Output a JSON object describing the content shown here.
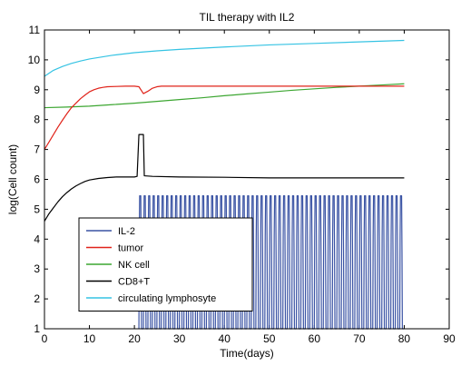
{
  "chart_data": {
    "type": "line",
    "title": "TIL therapy with IL2",
    "xlabel": "Time(days)",
    "ylabel": "log(Cell count)",
    "xlim": [
      0,
      90
    ],
    "ylim": [
      1,
      11
    ],
    "xticks": [
      0,
      10,
      20,
      30,
      40,
      50,
      60,
      70,
      80,
      90
    ],
    "yticks": [
      1,
      2,
      3,
      4,
      5,
      6,
      7,
      8,
      9,
      10,
      11
    ],
    "grid": false,
    "legend_position": "lower-left",
    "series": [
      {
        "name": "IL-2",
        "color": "#3a53a4",
        "pattern": "oscillating",
        "start": 21,
        "end": 80,
        "period": 1,
        "min": 1,
        "max": 5.45,
        "points": []
      },
      {
        "name": "tumor",
        "color": "#e0231a",
        "points": [
          [
            0,
            7.0
          ],
          [
            1,
            7.25
          ],
          [
            2,
            7.5
          ],
          [
            3,
            7.75
          ],
          [
            4,
            7.98
          ],
          [
            5,
            8.2
          ],
          [
            6,
            8.4
          ],
          [
            7,
            8.55
          ],
          [
            8,
            8.7
          ],
          [
            9,
            8.82
          ],
          [
            10,
            8.93
          ],
          [
            11,
            9.0
          ],
          [
            12,
            9.05
          ],
          [
            13,
            9.08
          ],
          [
            14,
            9.1
          ],
          [
            16,
            9.11
          ],
          [
            18,
            9.12
          ],
          [
            20,
            9.12
          ],
          [
            21,
            9.1
          ],
          [
            22,
            8.87
          ],
          [
            23,
            8.95
          ],
          [
            24,
            9.05
          ],
          [
            25,
            9.1
          ],
          [
            26,
            9.12
          ],
          [
            30,
            9.12
          ],
          [
            40,
            9.12
          ],
          [
            50,
            9.12
          ],
          [
            60,
            9.12
          ],
          [
            70,
            9.12
          ],
          [
            80,
            9.12
          ]
        ]
      },
      {
        "name": "NK cell",
        "color": "#3ca631",
        "points": [
          [
            0,
            8.4
          ],
          [
            5,
            8.42
          ],
          [
            10,
            8.45
          ],
          [
            15,
            8.5
          ],
          [
            20,
            8.55
          ],
          [
            25,
            8.61
          ],
          [
            30,
            8.67
          ],
          [
            35,
            8.73
          ],
          [
            40,
            8.8
          ],
          [
            45,
            8.86
          ],
          [
            50,
            8.92
          ],
          [
            55,
            8.98
          ],
          [
            60,
            9.03
          ],
          [
            65,
            9.08
          ],
          [
            70,
            9.12
          ],
          [
            75,
            9.16
          ],
          [
            80,
            9.2
          ]
        ]
      },
      {
        "name": "CD8+T",
        "color": "#000000",
        "points": [
          [
            0,
            4.6
          ],
          [
            1,
            4.85
          ],
          [
            2,
            5.05
          ],
          [
            3,
            5.25
          ],
          [
            4,
            5.42
          ],
          [
            5,
            5.56
          ],
          [
            6,
            5.68
          ],
          [
            7,
            5.78
          ],
          [
            8,
            5.86
          ],
          [
            9,
            5.93
          ],
          [
            10,
            5.98
          ],
          [
            12,
            6.03
          ],
          [
            14,
            6.06
          ],
          [
            16,
            6.08
          ],
          [
            18,
            6.08
          ],
          [
            20,
            6.08
          ],
          [
            20.6,
            6.1
          ],
          [
            21,
            7.5
          ],
          [
            22,
            7.5
          ],
          [
            22.2,
            6.12
          ],
          [
            24,
            6.1
          ],
          [
            30,
            6.08
          ],
          [
            40,
            6.07
          ],
          [
            50,
            6.05
          ],
          [
            60,
            6.05
          ],
          [
            70,
            6.05
          ],
          [
            80,
            6.05
          ]
        ]
      },
      {
        "name": "circulating lymphosyte",
        "color": "#35c3e3",
        "points": [
          [
            0,
            9.45
          ],
          [
            2,
            9.65
          ],
          [
            4,
            9.78
          ],
          [
            6,
            9.88
          ],
          [
            8,
            9.96
          ],
          [
            10,
            10.03
          ],
          [
            15,
            10.15
          ],
          [
            20,
            10.24
          ],
          [
            25,
            10.3
          ],
          [
            30,
            10.35
          ],
          [
            40,
            10.43
          ],
          [
            50,
            10.5
          ],
          [
            60,
            10.55
          ],
          [
            70,
            10.6
          ],
          [
            80,
            10.65
          ]
        ]
      }
    ]
  }
}
